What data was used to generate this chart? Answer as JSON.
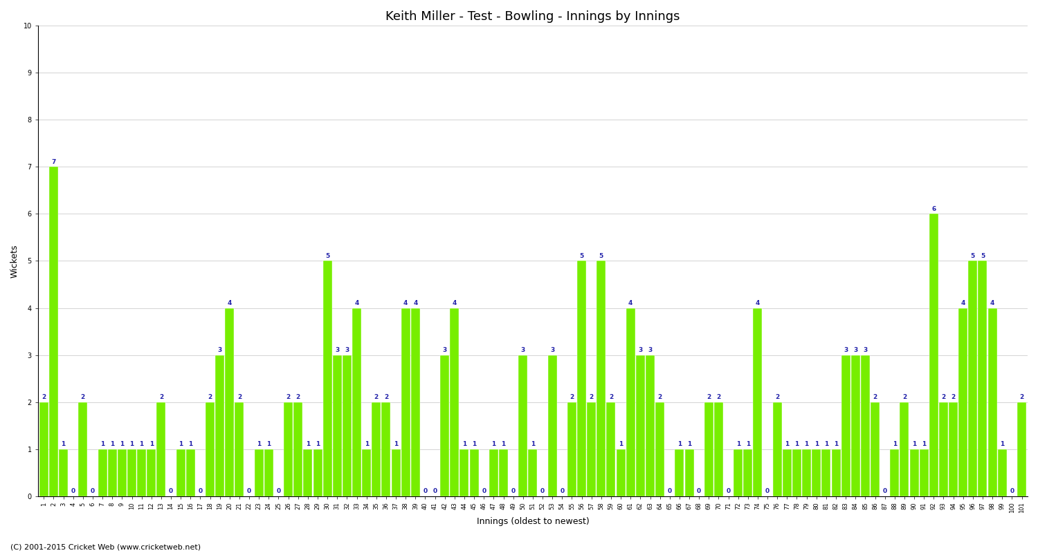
{
  "title": "Keith Miller - Test - Bowling - Innings by Innings",
  "xlabel": "Innings (oldest to newest)",
  "ylabel": "Wickets",
  "ylim": [
    0,
    10
  ],
  "yticks": [
    0,
    1,
    2,
    3,
    4,
    5,
    6,
    7,
    8,
    9,
    10
  ],
  "bar_color": "#77ee00",
  "bar_edge_color": "white",
  "background_color": "white",
  "title_fontsize": 13,
  "xlabel_fontsize": 9,
  "ylabel_fontsize": 9,
  "tick_fontsize": 7,
  "value_fontsize": 6.5,
  "value_color": "#2222aa",
  "footer": "(C) 2001-2015 Cricket Web (www.cricketweb.net)",
  "footer_fontsize": 8,
  "wickets": [
    2,
    7,
    1,
    0,
    2,
    0,
    1,
    1,
    1,
    1,
    1,
    1,
    2,
    0,
    1,
    1,
    0,
    2,
    3,
    4,
    2,
    0,
    1,
    1,
    0,
    2,
    2,
    1,
    1,
    5,
    3,
    3,
    4,
    1,
    2,
    2,
    1,
    4,
    4,
    0,
    0,
    3,
    4,
    1,
    1,
    0,
    1,
    1,
    0,
    3,
    1,
    0,
    3,
    0,
    2,
    5,
    2,
    5,
    2,
    1,
    4,
    3,
    3,
    2,
    0,
    1,
    1,
    0,
    2,
    2,
    0,
    1,
    1,
    4,
    0,
    2,
    1,
    1,
    1,
    1,
    1,
    1,
    3,
    3,
    3,
    2,
    0,
    1,
    2,
    1,
    1,
    6,
    2,
    2,
    4,
    5,
    5,
    4,
    1,
    0,
    2
  ]
}
